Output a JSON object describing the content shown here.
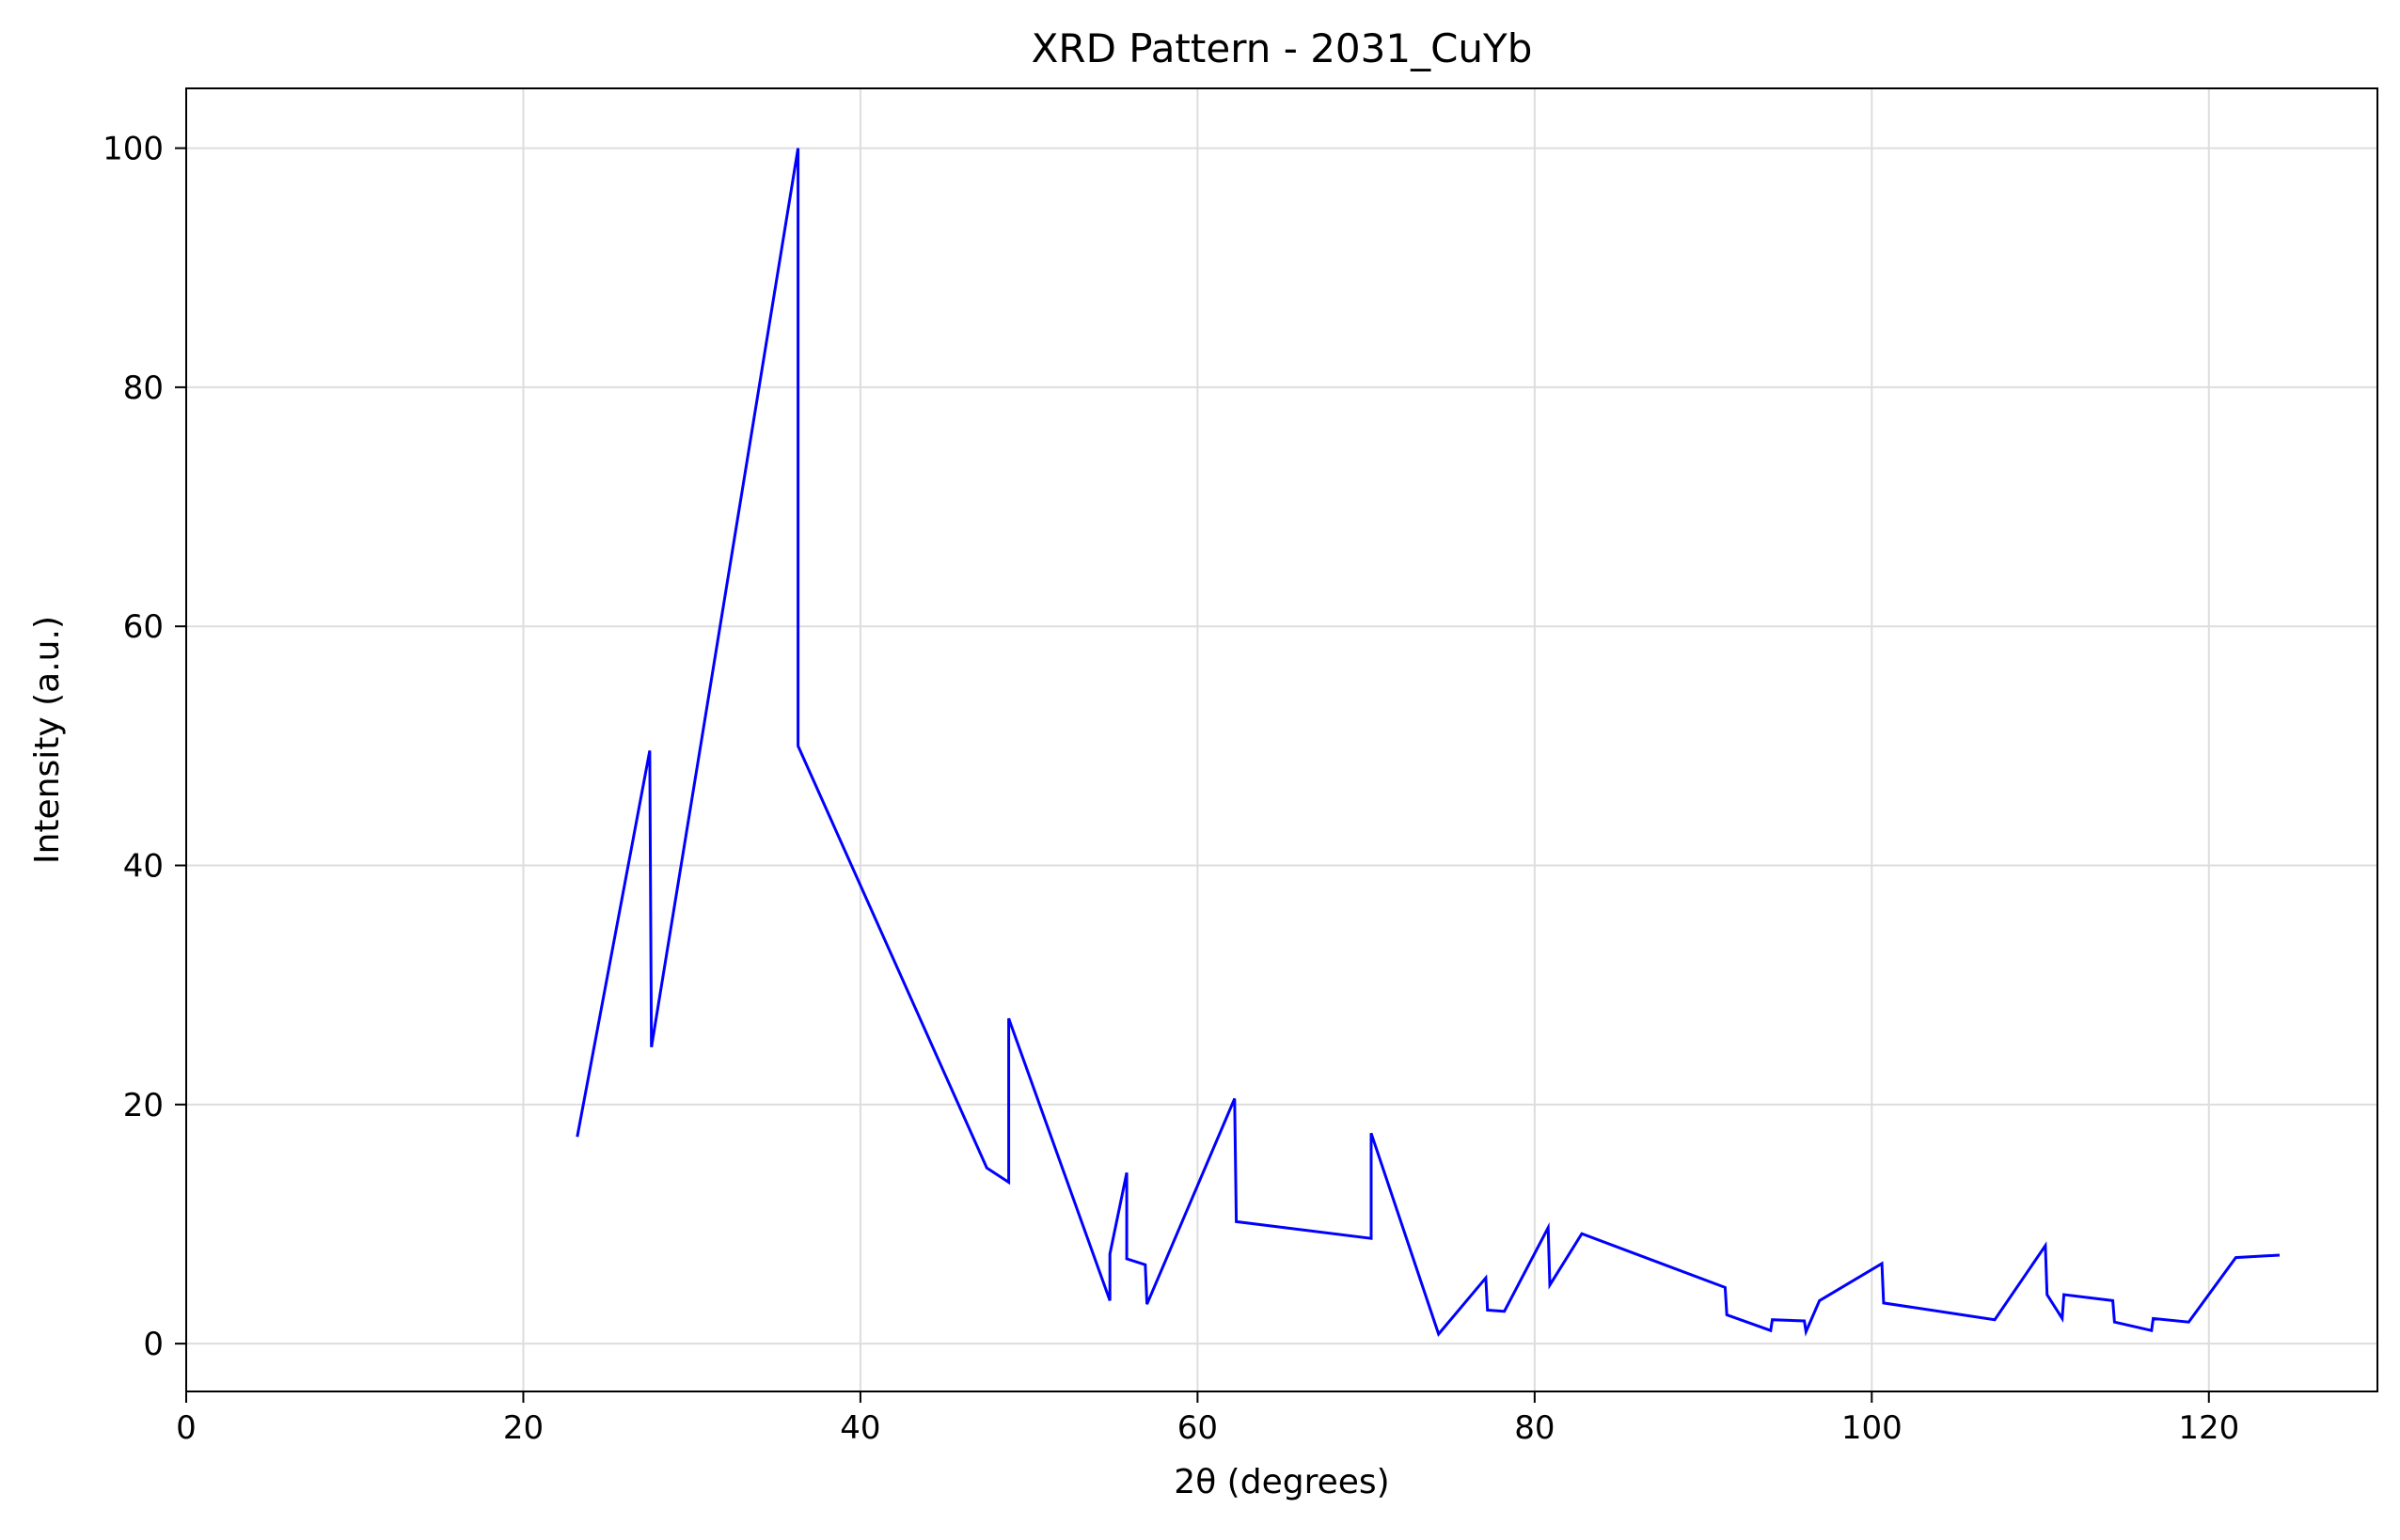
{
  "chart_data": {
    "type": "line",
    "title": "XRD Pattern - 2031_CuYb",
    "xlabel": "2θ (degrees)",
    "ylabel": "Intensity (a.u.)",
    "xlim": [
      0,
      130
    ],
    "ylim": [
      -4,
      105
    ],
    "x_ticks": [
      0,
      20,
      40,
      60,
      80,
      100,
      120
    ],
    "y_ticks": [
      0,
      20,
      40,
      60,
      80,
      100
    ],
    "grid": true,
    "line_color": "#0000ff",
    "series": [
      {
        "x": [
          23.2,
          27.5,
          27.6,
          36.3,
          36.3,
          47.5,
          48.8,
          48.8,
          54.8,
          54.8,
          55.8,
          55.8,
          56.9,
          57.0,
          62.2,
          62.3,
          70.3,
          70.3,
          74.3,
          77.1,
          77.2,
          78.2,
          80.8,
          80.9,
          82.8,
          91.3,
          91.4,
          94.0,
          94.1,
          96.0,
          96.1,
          96.9,
          100.6,
          100.7,
          107.3,
          110.3,
          110.4,
          111.3,
          111.4,
          114.3,
          114.4,
          116.6,
          116.7,
          118.8,
          121.6,
          124.2
        ],
        "y": [
          17.3,
          49.6,
          24.8,
          100.0,
          50.0,
          14.7,
          13.5,
          27.2,
          3.6,
          7.5,
          14.3,
          7.1,
          6.6,
          3.3,
          20.5,
          10.2,
          8.8,
          17.6,
          0.8,
          5.5,
          2.8,
          2.7,
          9.7,
          4.9,
          9.2,
          4.7,
          2.4,
          1.1,
          2.0,
          1.9,
          1.0,
          3.6,
          6.7,
          3.4,
          2.0,
          8.2,
          4.1,
          2.1,
          4.1,
          3.6,
          1.8,
          1.1,
          2.1,
          1.8,
          7.2,
          7.4
        ]
      }
    ]
  }
}
